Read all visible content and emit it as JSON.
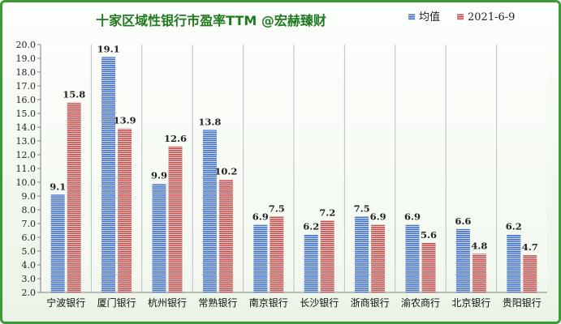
{
  "chart_data": {
    "type": "bar",
    "title": "十家区域性银行市盈率TTM   @宏赫臻财",
    "categories": [
      "宁波银行",
      "厦门银行",
      "杭州银行",
      "常熟银行",
      "南京银行",
      "长沙银行",
      "浙商银行",
      "渝农商行",
      "北京银行",
      "贵阳银行"
    ],
    "series": [
      {
        "name": "均值",
        "color": "#4472c4",
        "values": [
          9.1,
          19.1,
          9.9,
          13.8,
          6.9,
          6.2,
          7.5,
          6.9,
          6.6,
          6.2
        ]
      },
      {
        "name": "2021-6-9",
        "color": "#c0504d",
        "values": [
          15.8,
          13.9,
          12.6,
          10.2,
          7.5,
          7.2,
          6.9,
          5.6,
          4.8,
          4.7
        ]
      }
    ],
    "ylim": [
      2.0,
      20.0
    ],
    "ytick_step": 1.0,
    "yticks": [
      "2.0",
      "3.0",
      "4.0",
      "5.0",
      "6.0",
      "7.0",
      "8.0",
      "9.0",
      "10.0",
      "11.0",
      "12.0",
      "13.0",
      "14.0",
      "15.0",
      "16.0",
      "17.0",
      "18.0",
      "19.0",
      "20.0"
    ],
    "grid": "vertical-category-separators",
    "legend_position": "top-right",
    "data_labels": true,
    "border_color": "#3d9a3a",
    "title_color": "#1f7a1f"
  }
}
